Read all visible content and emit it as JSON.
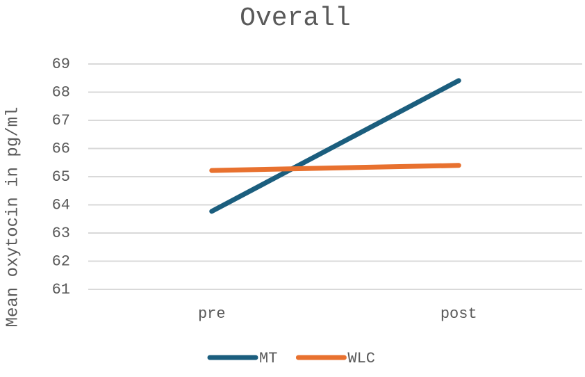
{
  "chart_data": {
    "type": "line",
    "title": "Overall",
    "y_label": "Mean oxytocin in pg/ml",
    "categories": [
      "pre",
      "post"
    ],
    "series": [
      {
        "name": "MT",
        "color": "#1b5e7e",
        "values": [
          63.77,
          68.41
        ]
      },
      {
        "name": "WLC",
        "color": "#e8712f",
        "values": [
          65.22,
          65.4
        ]
      }
    ],
    "ylim": [
      61,
      69
    ],
    "yticks": [
      61,
      62,
      63,
      64,
      65,
      66,
      67,
      68,
      69
    ],
    "grid": true,
    "legend": "bottom"
  }
}
